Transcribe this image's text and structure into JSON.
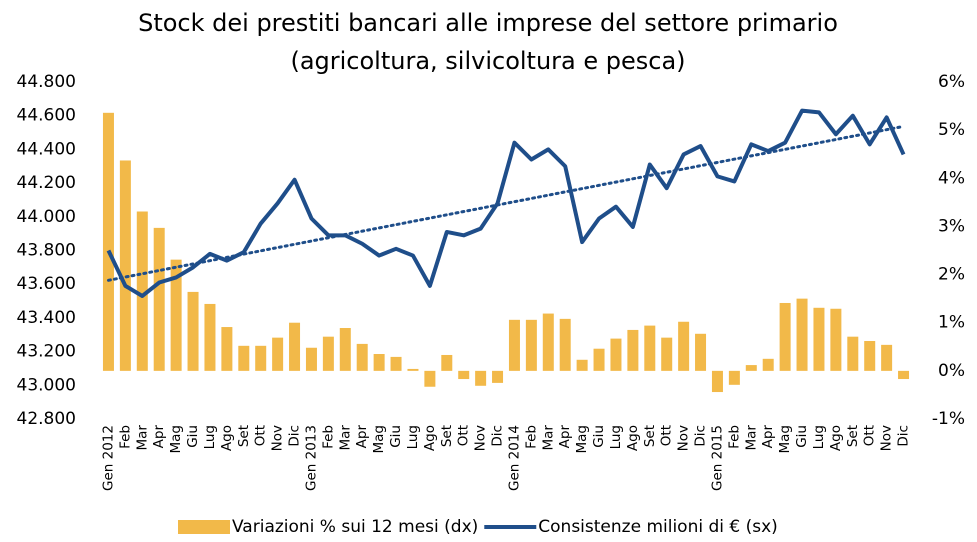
{
  "chart_data": {
    "type": "bar-line",
    "title": "Stock dei prestiti bancari alle imprese del settore primario",
    "subtitle": "(agricoltura, silvicoltura e pesca)",
    "categories": [
      "Gen 2012",
      "Feb",
      "Mar",
      "Apr",
      "Mag",
      "Giu",
      "Lug",
      "Ago",
      "Set",
      "Ott",
      "Nov",
      "Dic",
      "Gen 2013",
      "Feb",
      "Mar",
      "Apr",
      "Mag",
      "Giu",
      "Lug",
      "Ago",
      "Set",
      "Ott",
      "Nov",
      "Dic",
      "Gen 2014",
      "Feb",
      "Mar",
      "Apr",
      "Mag",
      "Giu",
      "Lug",
      "Ago",
      "Set",
      "Ott",
      "Nov",
      "Dic",
      "Gen 2015",
      "Feb",
      "Mar",
      "Apr",
      "Mag",
      "Giu",
      "Lug",
      "Ago",
      "Set",
      "Ott",
      "Nov",
      "Dic"
    ],
    "series": [
      {
        "name": "Variazioni % sui 12 mesi (dx)",
        "type": "bar",
        "axis": "y2",
        "color": "#f2b949",
        "values": [
          5.36,
          4.37,
          3.31,
          2.97,
          2.31,
          1.64,
          1.39,
          0.91,
          0.52,
          0.52,
          0.69,
          1.0,
          0.48,
          0.71,
          0.89,
          0.56,
          0.35,
          0.29,
          0.04,
          -0.33,
          0.33,
          -0.17,
          -0.31,
          -0.25,
          1.06,
          1.06,
          1.19,
          1.08,
          0.23,
          0.46,
          0.67,
          0.85,
          0.94,
          0.69,
          1.02,
          0.77,
          -0.44,
          -0.29,
          0.12,
          0.25,
          1.41,
          1.5,
          1.31,
          1.29,
          0.71,
          0.62,
          0.54,
          -0.17
        ]
      },
      {
        "name": "Consistenze milioni di € (sx)",
        "type": "line",
        "axis": "y",
        "color": "#1f4e8a",
        "trendline": true,
        "values": [
          43800,
          43590,
          43530,
          43610,
          43640,
          43700,
          43780,
          43740,
          43790,
          43960,
          44080,
          44220,
          43990,
          43890,
          43890,
          43840,
          43770,
          43810,
          43770,
          43590,
          43910,
          43890,
          43930,
          44080,
          44440,
          44340,
          44400,
          44300,
          43850,
          43990,
          44060,
          43940,
          44310,
          44170,
          44370,
          44420,
          44240,
          44210,
          44430,
          44390,
          44440,
          44630,
          44620,
          44490,
          44600,
          44430,
          44590,
          44370
        ]
      }
    ],
    "ylim": [
      42800,
      44800
    ],
    "yticks": [
      {
        "value": 42800,
        "label": "42.800"
      },
      {
        "value": 43000,
        "label": "43.000"
      },
      {
        "value": 43200,
        "label": "43.200"
      },
      {
        "value": 43400,
        "label": "43.400"
      },
      {
        "value": 43600,
        "label": "43.600"
      },
      {
        "value": 43800,
        "label": "43.800"
      },
      {
        "value": 44000,
        "label": "44.000"
      },
      {
        "value": 44200,
        "label": "44.200"
      },
      {
        "value": 44400,
        "label": "44.400"
      },
      {
        "value": 44600,
        "label": "44.600"
      },
      {
        "value": 44800,
        "label": "44.800"
      }
    ],
    "y2lim": [
      -1,
      6
    ],
    "y2ticks": [
      {
        "value": -1,
        "label": "-1%"
      },
      {
        "value": 0,
        "label": "0%"
      },
      {
        "value": 1,
        "label": "1%"
      },
      {
        "value": 2,
        "label": "2%"
      },
      {
        "value": 3,
        "label": "3%"
      },
      {
        "value": 4,
        "label": "4%"
      },
      {
        "value": 5,
        "label": "5%"
      },
      {
        "value": 6,
        "label": "6%"
      }
    ],
    "legend": "bottom"
  }
}
